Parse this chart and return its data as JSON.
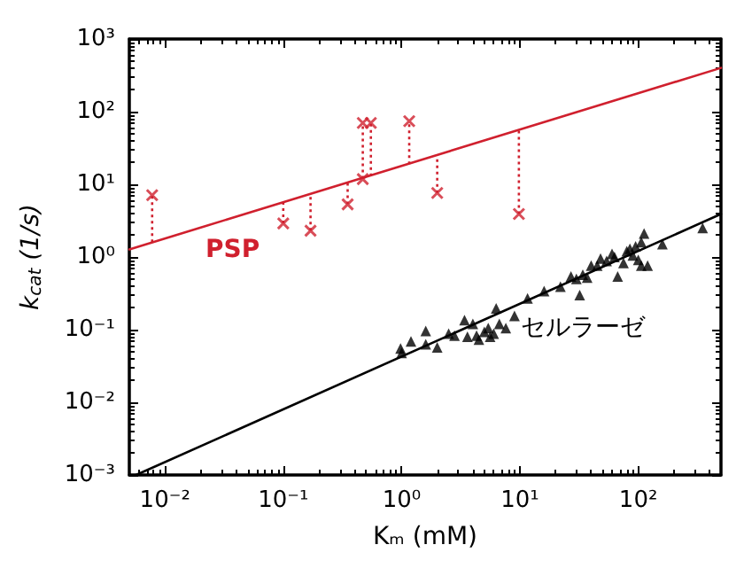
{
  "chart_data": {
    "type": "scatter",
    "xlabel": "Kₘ (mM)",
    "ylabel": "k$_{cat}$ (1/s)",
    "log": "xy",
    "grid": false,
    "xlim": [
      0.005,
      500
    ],
    "ylim": [
      0.001,
      1000
    ],
    "xticks": [
      {
        "value": 0.01,
        "label": "10⁻²"
      },
      {
        "value": 0.1,
        "label": "10⁻¹"
      },
      {
        "value": 1,
        "label": "10⁰"
      },
      {
        "value": 10,
        "label": "10¹"
      },
      {
        "value": 100,
        "label": "10²"
      }
    ],
    "yticks": [
      {
        "value": 0.001,
        "label": "10⁻³"
      },
      {
        "value": 0.01,
        "label": "10⁻²"
      },
      {
        "value": 0.1,
        "label": "10⁻¹"
      },
      {
        "value": 1,
        "label": "10⁰"
      },
      {
        "value": 10,
        "label": "10¹"
      },
      {
        "value": 100,
        "label": "10²"
      },
      {
        "value": 1000,
        "label": "10³"
      }
    ],
    "annotations": [
      "PSP",
      "セルラーゼ"
    ],
    "series": [
      {
        "color": "#d0202e",
        "marker": "cross",
        "x": [
          0.0078,
          0.1,
          0.17,
          0.35,
          0.47,
          0.47,
          0.55,
          1.16,
          2.0,
          9.8
        ],
        "values": [
          7.1,
          2.9,
          2.3,
          5.3,
          11.8,
          70,
          70,
          74,
          7.6,
          3.9
        ],
        "errors": [
          [
            1.6,
            7.1
          ],
          [
            2.9,
            5.7
          ],
          [
            2.3,
            7.4
          ],
          [
            5.3,
            10.7
          ],
          null,
          [
            12,
            70
          ],
          [
            13,
            70
          ],
          [
            19,
            74
          ],
          [
            7.6,
            25
          ],
          [
            3.9,
            56
          ]
        ]
      },
      {
        "color": "#000000",
        "marker": "triangle",
        "x": [
          0.98,
          1.0,
          1.2,
          1.6,
          1.6,
          2.0,
          2.5,
          2.8,
          3.4,
          3.6,
          4.0,
          4.3,
          4.5,
          5.0,
          5.4,
          5.6,
          6.0,
          6.3,
          6.7,
          7.6,
          9.0,
          11.6,
          16,
          22,
          27,
          30,
          32,
          34,
          37,
          40,
          45,
          48,
          54,
          60,
          63,
          67,
          75,
          80,
          85,
          90,
          95,
          100,
          106,
          112,
          106,
          120,
          160,
          350
        ],
        "values": [
          0.055,
          0.048,
          0.069,
          0.096,
          0.063,
          0.057,
          0.088,
          0.083,
          0.135,
          0.08,
          0.12,
          0.083,
          0.073,
          0.093,
          0.105,
          0.08,
          0.088,
          0.196,
          0.12,
          0.105,
          0.154,
          0.27,
          0.34,
          0.39,
          0.54,
          0.5,
          0.3,
          0.57,
          0.52,
          0.76,
          0.76,
          0.95,
          0.88,
          1.1,
          1.0,
          0.54,
          0.83,
          1.2,
          1.3,
          1.05,
          1.4,
          0.91,
          1.6,
          2.1,
          0.76,
          0.76,
          1.5,
          2.5
        ]
      },
      {
        "type": "line",
        "color": "#d0202e",
        "marker": "none",
        "line_style": "solid",
        "x": [
          0.005,
          500
        ],
        "values": [
          1.27,
          400
        ]
      },
      {
        "type": "line",
        "color": "#000000",
        "marker": "none",
        "line_style": "solid",
        "x": [
          0.0057,
          500
        ],
        "values": [
          0.001,
          3.9
        ]
      }
    ]
  }
}
